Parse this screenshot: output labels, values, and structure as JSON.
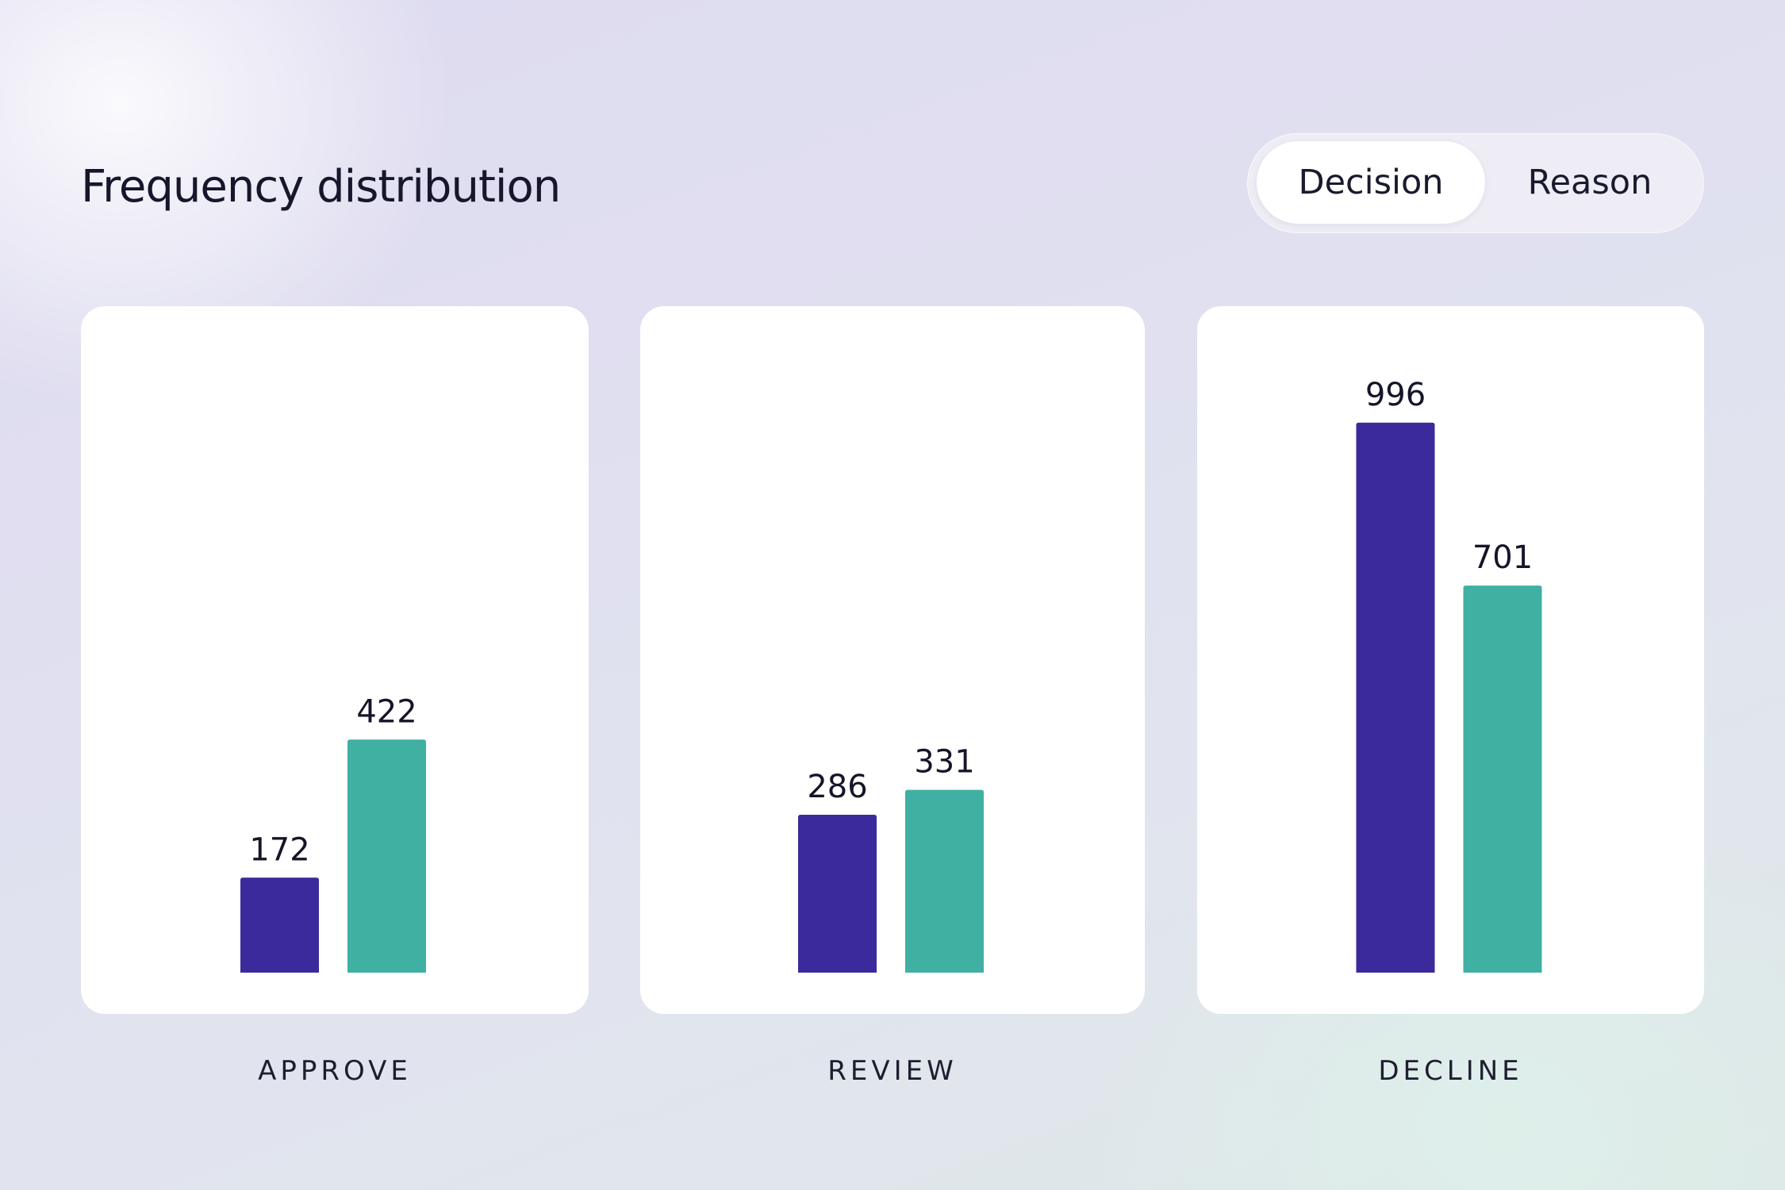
{
  "title": "Frequency distribution",
  "toggle": {
    "options": [
      "Decision",
      "Reason"
    ],
    "selected": "Decision"
  },
  "colors": {
    "series_a": "#3b2a9c",
    "series_b": "#3fb0a2",
    "panel_bg": "#ffffff"
  },
  "chart_data": {
    "type": "bar",
    "title": "Frequency distribution",
    "categories": [
      "APPROVE",
      "REVIEW",
      "DECLINE"
    ],
    "series": [
      {
        "values": [
          172,
          286,
          996
        ]
      },
      {
        "values": [
          422,
          331,
          701
        ]
      }
    ],
    "ylim": [
      0,
      1000
    ],
    "grid": false,
    "data_labels": true
  }
}
